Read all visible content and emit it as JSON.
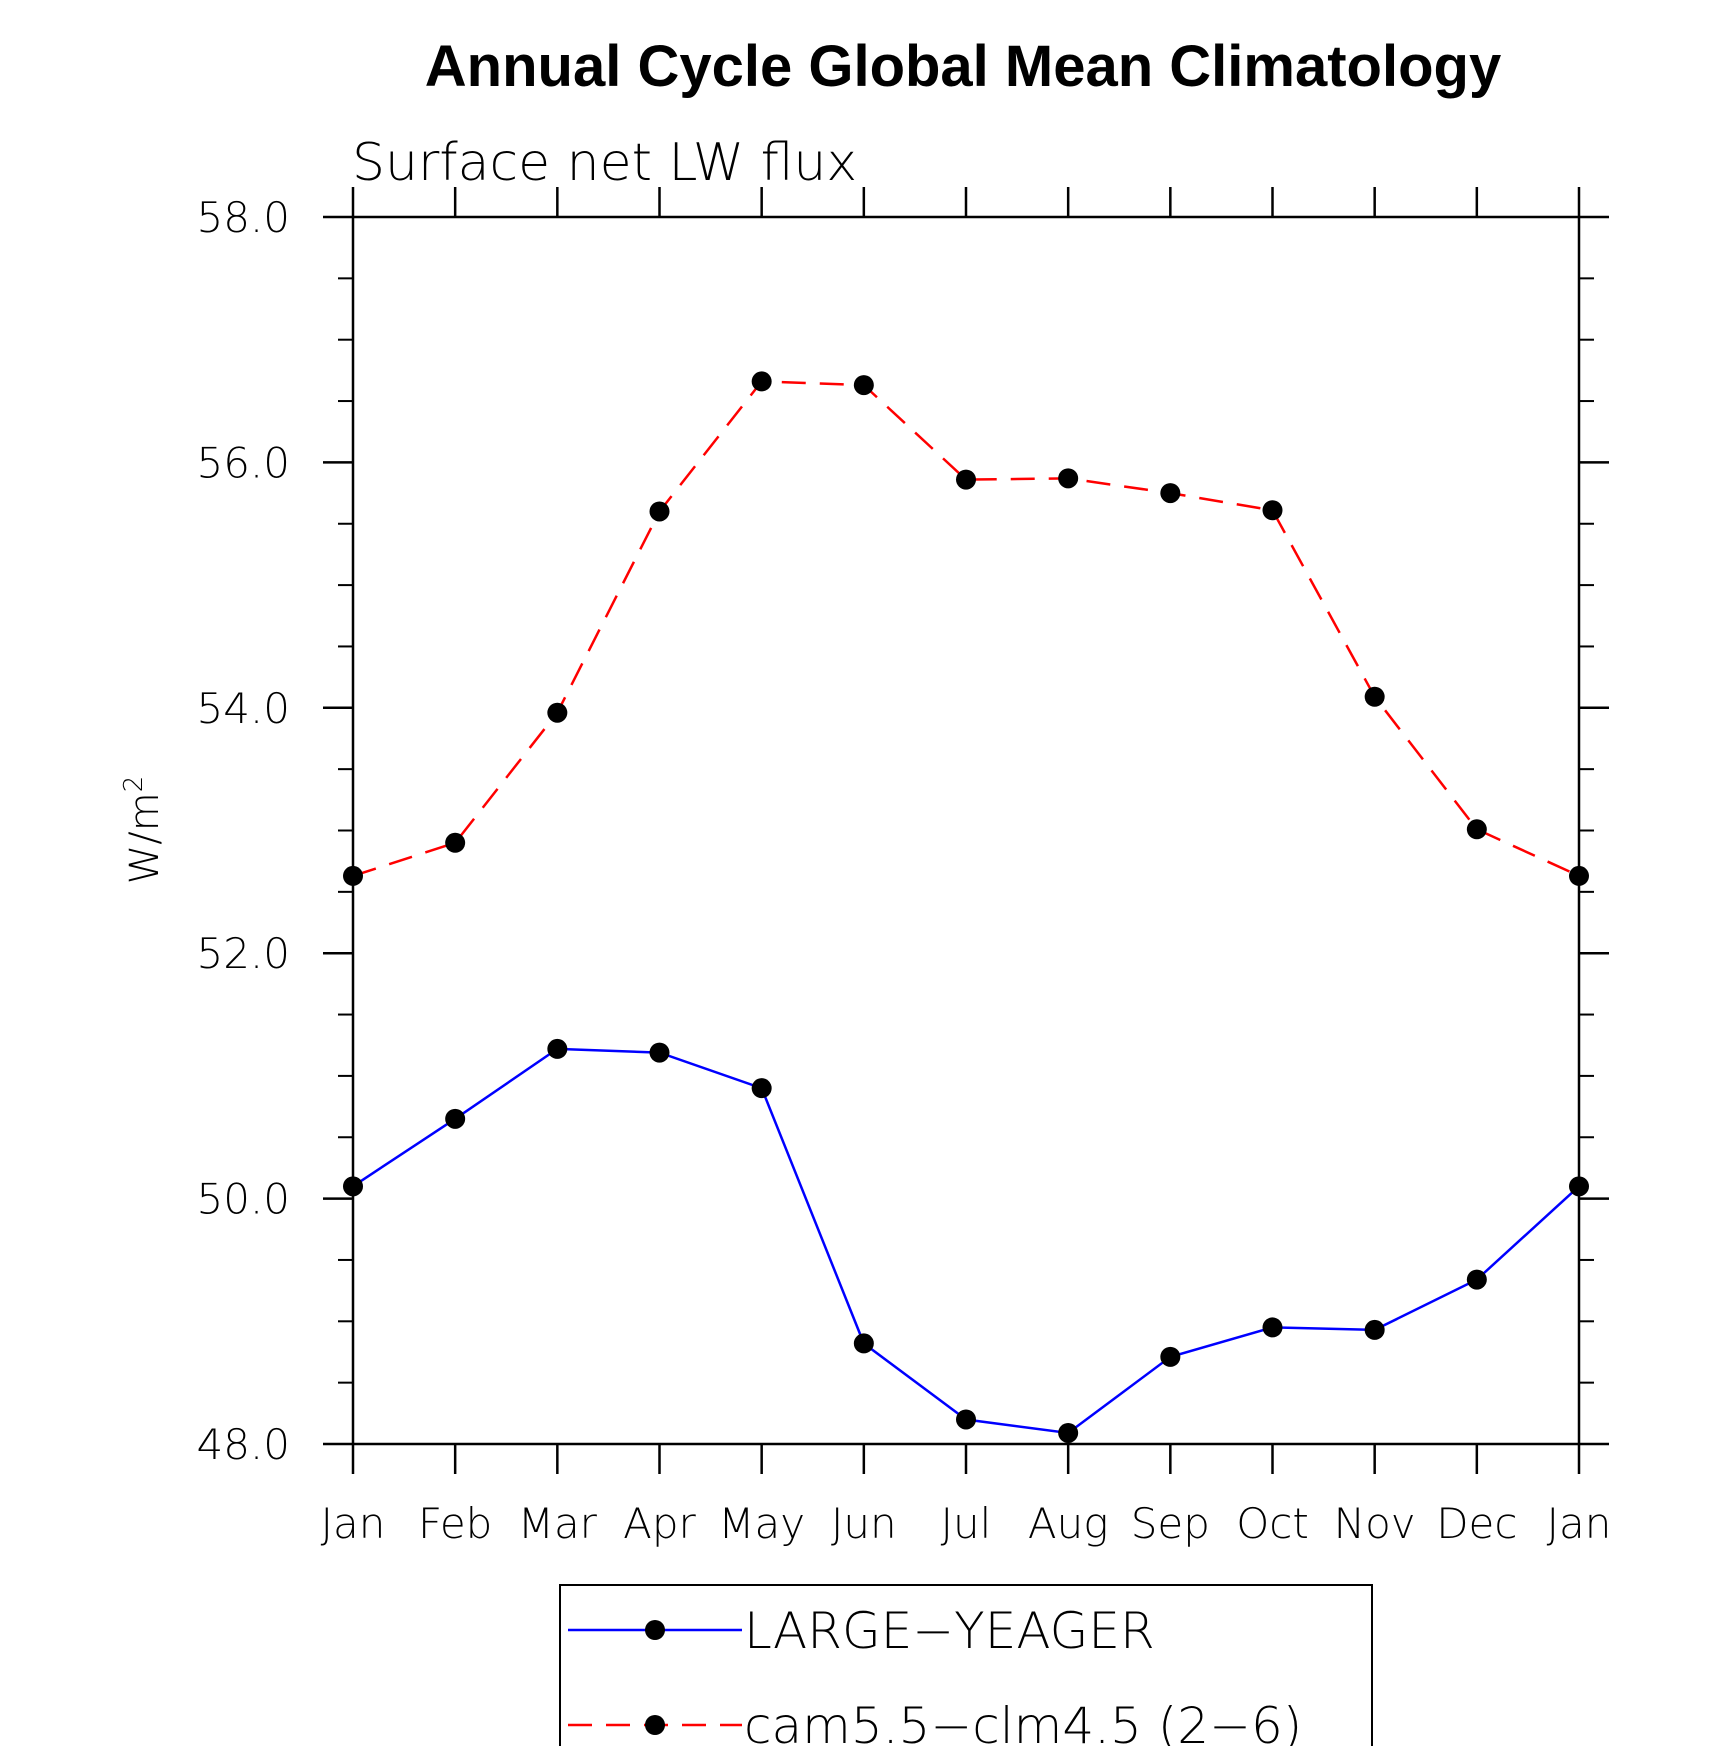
{
  "chart_data": {
    "type": "line",
    "title": "Annual Cycle Global Mean Climatology",
    "subtitle": "Surface net LW flux",
    "ylabel": "W/m",
    "ylabel_superscript": "2",
    "xlabel": "",
    "categories": [
      "Jan",
      "Feb",
      "Mar",
      "Apr",
      "May",
      "Jun",
      "Jul",
      "Aug",
      "Sep",
      "Oct",
      "Nov",
      "Dec",
      "Jan"
    ],
    "ylim": [
      48.0,
      58.0
    ],
    "yticks": [
      "48.0",
      "50.0",
      "52.0",
      "54.0",
      "56.0",
      "58.0"
    ],
    "ytick_values": [
      48,
      50,
      52,
      54,
      56,
      58
    ],
    "grid": false,
    "legend_position": "bottom-center",
    "series": [
      {
        "name": "LARGE−YEAGER",
        "color": "#0000ff",
        "line_style": "solid",
        "marker": "filled-circle",
        "values": [
          50.1,
          50.65,
          51.22,
          51.19,
          50.9,
          48.82,
          48.2,
          48.09,
          48.71,
          48.95,
          48.93,
          49.34,
          50.1
        ]
      },
      {
        "name": "cam5.5−clm4.5 (2−6)",
        "color": "#ff0000",
        "line_style": "dashed",
        "marker": "filled-circle",
        "values": [
          52.63,
          52.9,
          53.96,
          55.6,
          56.66,
          56.63,
          55.86,
          55.87,
          55.75,
          55.61,
          54.09,
          53.01,
          52.63
        ]
      }
    ]
  }
}
